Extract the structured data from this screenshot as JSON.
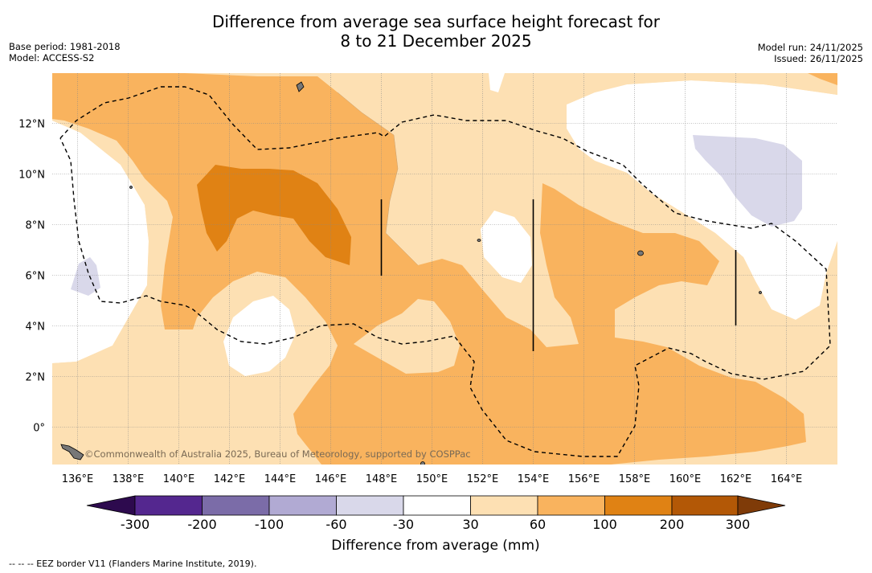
{
  "header": {
    "title_line1": "Difference from average sea surface height forecast for",
    "title_line2": "8 to 21 December 2025",
    "base_period": "Base period: 1981-2018",
    "model": "Model: ACCESS-S2",
    "model_run": "Model run: 24/11/2025",
    "issued": "Issued: 26/11/2025"
  },
  "map": {
    "watermark": "©Commonwealth of Australia 2025, Bureau of Meteorology, supported by COSPPac",
    "lon_labels": [
      "136°E",
      "138°E",
      "140°E",
      "142°E",
      "144°E",
      "146°E",
      "148°E",
      "150°E",
      "152°E",
      "154°E",
      "156°E",
      "158°E",
      "160°E",
      "162°E",
      "164°E"
    ],
    "lat_labels": [
      "12°N",
      "10°N",
      "8°N",
      "6°N",
      "4°N",
      "2°N",
      "0°"
    ]
  },
  "colorbar": {
    "title": "Difference from average (mm)",
    "tick_labels": [
      "-300",
      "-200",
      "-100",
      "-60",
      "-30",
      "30",
      "60",
      "100",
      "200",
      "300"
    ],
    "colors": {
      "below_-300": "#2d0a4e",
      "-300_-200": "#54278f",
      "-200_-100": "#7b6ca8",
      "-100_-60": "#b1aad3",
      "-60_-30": "#d9d8ea",
      "-30_30": "#ffffff",
      "30_60": "#fde0b3",
      "60_100": "#f9b35e",
      "100_200": "#e08214",
      "200_300": "#b35806",
      "above_300": "#7f3b08"
    }
  },
  "footnote": "-- -- -- EEZ border V11 (Flanders Marine Institute, 2019)."
}
